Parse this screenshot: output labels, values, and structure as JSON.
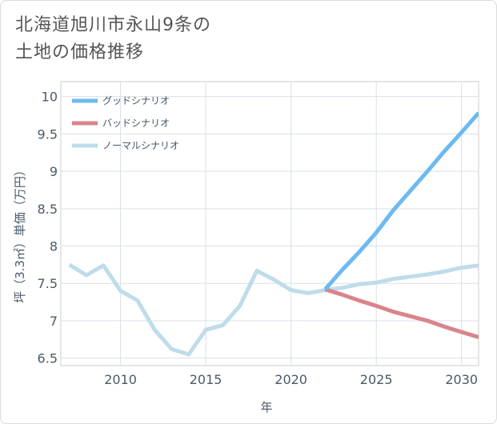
{
  "title_lines": [
    "北海道旭川市永山9条の",
    "土地の価格推移"
  ],
  "chart_data": {
    "type": "line",
    "xlabel": "年",
    "ylabel": "坪（3.3㎡）単価（万円）",
    "xlim": [
      2006.5,
      2031
    ],
    "ylim": [
      6.4,
      10.2
    ],
    "xticks": [
      2010,
      2015,
      2020,
      2025,
      2030
    ],
    "yticks": [
      6.5,
      7,
      7.5,
      8,
      8.5,
      9,
      9.5,
      10
    ],
    "ytick_labels": [
      "6.5",
      "7",
      "7.5",
      "8",
      "8.5",
      "9",
      "9.5",
      "10"
    ],
    "grid": true,
    "legend_position": "top-left",
    "series": [
      {
        "name": "グッドシナリオ",
        "color": "#6cbaf0",
        "x": [
          2022,
          2023,
          2024,
          2025,
          2026,
          2027,
          2028,
          2029,
          2030,
          2031
        ],
        "y": [
          7.42,
          7.68,
          7.92,
          8.18,
          8.48,
          8.74,
          9.0,
          9.27,
          9.52,
          9.78
        ]
      },
      {
        "name": "バッドシナリオ",
        "color": "#d9848c",
        "x": [
          2022,
          2023,
          2024,
          2025,
          2026,
          2027,
          2028,
          2029,
          2030,
          2031
        ],
        "y": [
          7.42,
          7.35,
          7.27,
          7.2,
          7.12,
          7.06,
          7.0,
          6.92,
          6.85,
          6.78
        ]
      },
      {
        "name": "ノーマルシナリオ",
        "color": "#bfdcea",
        "x": [
          2007,
          2008,
          2009,
          2010,
          2011,
          2012,
          2013,
          2014,
          2015,
          2016,
          2017,
          2018,
          2019,
          2020,
          2021,
          2022,
          2023,
          2024,
          2025,
          2026,
          2027,
          2028,
          2029,
          2030,
          2031
        ],
        "y": [
          7.75,
          7.61,
          7.74,
          7.4,
          7.27,
          6.88,
          6.62,
          6.55,
          6.88,
          6.94,
          7.2,
          7.67,
          7.55,
          7.41,
          7.37,
          7.41,
          7.44,
          7.49,
          7.51,
          7.56,
          7.59,
          7.62,
          7.66,
          7.71,
          7.74
        ]
      }
    ]
  }
}
